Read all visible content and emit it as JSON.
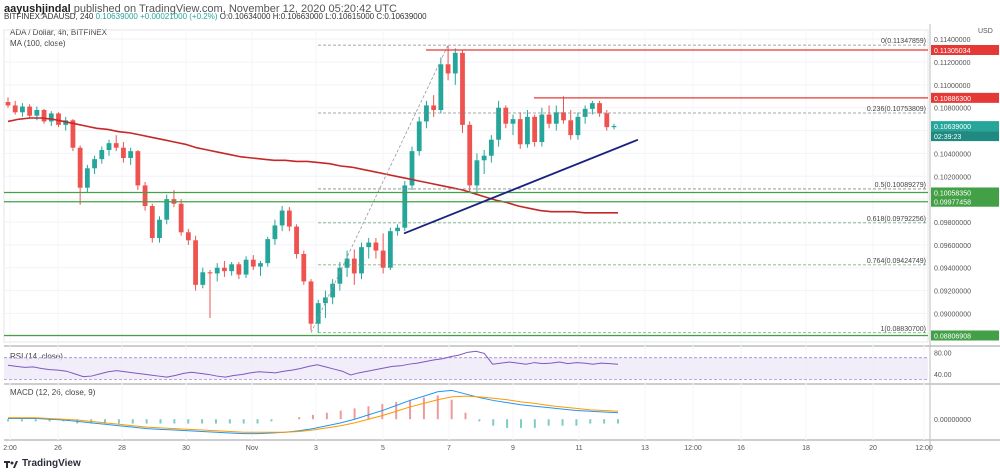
{
  "header": {
    "publisher": "aayushjindal",
    "published_text": "published on TradingView.com, November 12, 2020 05:20:42 UTC",
    "symbol_line": "BITFINEX:ADAUSD, 240",
    "ohlc": {
      "last": "0.10639000",
      "change": "+0.00021000 (+0.2%)",
      "open": "O:0.10634000",
      "high": "H:0.10663000",
      "low": "L:0.10615000",
      "close": "C:0.10639000"
    }
  },
  "legend": {
    "title": "ADA / Dollar, 4h, BITFINEX",
    "ma": "MA (100, close)",
    "rsi": "RSI (14, close)",
    "macd": "MACD (12, 26, close, 9)"
  },
  "currency": "USD",
  "footer": {
    "brand": "TradingView"
  },
  "colors": {
    "up": "#26a69a",
    "down": "#ef5350",
    "ma": "#c62828",
    "trend": "#1a237e",
    "resistance": "#e53935",
    "support": "#43a047",
    "fib": "#888888",
    "rsi": "#7e57c2",
    "macd": "#2196f3",
    "signal": "#ff9800"
  },
  "chart_data": [
    {
      "type": "candlestick",
      "title": "ADA / Dollar, 4h, BITFINEX",
      "x_tick_labels": [
        "2:00",
        "26",
        "28",
        "30",
        "Nov",
        "3",
        "5",
        "7",
        "9",
        "11",
        "13",
        "12:00",
        "16",
        "18",
        "20",
        "12:00"
      ],
      "y_tick_labels": [
        "0.08800000",
        "0.09000000",
        "0.09200000",
        "0.09400000",
        "0.09600000",
        "0.09800000",
        "0.10000000",
        "0.10200000",
        "0.10400000",
        "0.10600000",
        "0.10800000",
        "0.11000000",
        "0.11200000",
        "0.11400000"
      ],
      "ylim": [
        0.0875,
        0.1148
      ],
      "candles_ohlc": [
        [
          0.1085,
          0.1089,
          0.108,
          0.1082
        ],
        [
          0.1082,
          0.1086,
          0.1074,
          0.1076
        ],
        [
          0.1076,
          0.1084,
          0.1072,
          0.1081
        ],
        [
          0.1081,
          0.1083,
          0.1071,
          0.1073
        ],
        [
          0.1073,
          0.1081,
          0.1069,
          0.1078
        ],
        [
          0.1078,
          0.1079,
          0.1066,
          0.1068
        ],
        [
          0.1068,
          0.1077,
          0.1064,
          0.1075
        ],
        [
          0.1075,
          0.1076,
          0.1063,
          0.1065
        ],
        [
          0.1065,
          0.1072,
          0.106,
          0.1069
        ],
        [
          0.1069,
          0.107,
          0.1042,
          0.1045
        ],
        [
          0.1045,
          0.1047,
          0.0995,
          0.101
        ],
        [
          0.101,
          0.103,
          0.1006,
          0.1027
        ],
        [
          0.1027,
          0.1038,
          0.1022,
          0.1035
        ],
        [
          0.1035,
          0.1046,
          0.1031,
          0.1043
        ],
        [
          0.1043,
          0.1052,
          0.1038,
          0.1049
        ],
        [
          0.1049,
          0.1056,
          0.1042,
          0.1045
        ],
        [
          0.1045,
          0.105,
          0.1032,
          0.1036
        ],
        [
          0.1036,
          0.1045,
          0.103,
          0.1042
        ],
        [
          0.1042,
          0.1043,
          0.1008,
          0.1012
        ],
        [
          0.1012,
          0.1015,
          0.099,
          0.0994
        ],
        [
          0.0994,
          0.0996,
          0.0962,
          0.0966
        ],
        [
          0.0966,
          0.0985,
          0.0962,
          0.0982
        ],
        [
          0.0982,
          0.1004,
          0.0978,
          0.1
        ],
        [
          0.1,
          0.1008,
          0.0993,
          0.0996
        ],
        [
          0.0996,
          0.1,
          0.0968,
          0.0971
        ],
        [
          0.0971,
          0.0974,
          0.096,
          0.0964
        ],
        [
          0.0964,
          0.0968,
          0.092,
          0.0925
        ],
        [
          0.0925,
          0.094,
          0.0922,
          0.0936
        ],
        [
          0.0936,
          0.0938,
          0.0896,
          0.0935
        ],
        [
          0.0935,
          0.0944,
          0.0928,
          0.094
        ],
        [
          0.094,
          0.0946,
          0.0932,
          0.0937
        ],
        [
          0.0937,
          0.0945,
          0.0933,
          0.0943
        ],
        [
          0.0943,
          0.0945,
          0.093,
          0.0934
        ],
        [
          0.0934,
          0.095,
          0.0931,
          0.0947
        ],
        [
          0.0947,
          0.0951,
          0.0938,
          0.0941
        ],
        [
          0.0941,
          0.0946,
          0.0933,
          0.0944
        ],
        [
          0.0944,
          0.0967,
          0.0941,
          0.0965
        ],
        [
          0.0965,
          0.0982,
          0.096,
          0.0977
        ],
        [
          0.0977,
          0.0994,
          0.0972,
          0.099
        ],
        [
          0.099,
          0.0993,
          0.0972,
          0.0976
        ],
        [
          0.0976,
          0.0978,
          0.0948,
          0.0952
        ],
        [
          0.0952,
          0.0955,
          0.0925,
          0.0928
        ],
        [
          0.0928,
          0.093,
          0.0885,
          0.0891
        ],
        [
          0.0891,
          0.0912,
          0.0883,
          0.0909
        ],
        [
          0.0909,
          0.092,
          0.0896,
          0.0914
        ],
        [
          0.0914,
          0.093,
          0.0908,
          0.0926
        ],
        [
          0.0926,
          0.0945,
          0.092,
          0.094
        ],
        [
          0.094,
          0.0955,
          0.0932,
          0.0948
        ],
        [
          0.0948,
          0.0956,
          0.0925,
          0.0935
        ],
        [
          0.0935,
          0.0962,
          0.093,
          0.0958
        ],
        [
          0.0958,
          0.0966,
          0.0948,
          0.0962
        ],
        [
          0.0962,
          0.0966,
          0.0948,
          0.0955
        ],
        [
          0.0955,
          0.097,
          0.0935,
          0.094
        ],
        [
          0.094,
          0.0975,
          0.0938,
          0.0972
        ],
        [
          0.0972,
          0.0978,
          0.0968,
          0.0975
        ],
        [
          0.0975,
          0.1016,
          0.0972,
          0.1012
        ],
        [
          0.1012,
          0.1046,
          0.1008,
          0.1042
        ],
        [
          0.1042,
          0.1072,
          0.1038,
          0.1068
        ],
        [
          0.1068,
          0.1086,
          0.1062,
          0.1082
        ],
        [
          0.1082,
          0.1091,
          0.1072,
          0.1078
        ],
        [
          0.1078,
          0.1124,
          0.1075,
          0.1118
        ],
        [
          0.1118,
          0.1134,
          0.1104,
          0.111
        ],
        [
          0.111,
          0.1132,
          0.11,
          0.1128
        ],
        [
          0.1128,
          0.113,
          0.1058,
          0.1065
        ],
        [
          0.1065,
          0.1068,
          0.1006,
          0.1012
        ],
        [
          0.1012,
          0.104,
          0.1004,
          0.1034
        ],
        [
          0.1034,
          0.1043,
          0.1022,
          0.1038
        ],
        [
          0.1038,
          0.1056,
          0.1032,
          0.1052
        ],
        [
          0.1052,
          0.1086,
          0.1046,
          0.108
        ],
        [
          0.108,
          0.1082,
          0.1062,
          0.1066
        ],
        [
          0.1066,
          0.1074,
          0.1056,
          0.107
        ],
        [
          0.107,
          0.1076,
          0.1044,
          0.1048
        ],
        [
          0.1048,
          0.1078,
          0.1045,
          0.1072
        ],
        [
          0.1072,
          0.1074,
          0.1046,
          0.105
        ],
        [
          0.105,
          0.108,
          0.1046,
          0.1074
        ],
        [
          0.1074,
          0.1082,
          0.1062,
          0.1066
        ],
        [
          0.1066,
          0.1082,
          0.106,
          0.1076
        ],
        [
          0.1076,
          0.109,
          0.1066,
          0.1069
        ],
        [
          0.1069,
          0.1078,
          0.1052,
          0.1056
        ],
        [
          0.1056,
          0.1076,
          0.1052,
          0.1072
        ],
        [
          0.1072,
          0.1082,
          0.1066,
          0.1079
        ],
        [
          0.1079,
          0.1086,
          0.1074,
          0.1084
        ],
        [
          0.1084,
          0.1086,
          0.1072,
          0.1075
        ],
        [
          0.1075,
          0.1078,
          0.106,
          0.1063
        ],
        [
          0.1063,
          0.1066,
          0.1061,
          0.1064
        ]
      ],
      "ma_100": [
        0.1068,
        0.107,
        0.1071,
        0.1071,
        0.107,
        0.1068,
        0.1066,
        0.1064,
        0.1062,
        0.1061,
        0.1059,
        0.1058,
        0.1056,
        0.1054,
        0.1052,
        0.105,
        0.1048,
        0.1045,
        0.1043,
        0.1041,
        0.1039,
        0.1037,
        0.1036,
        0.1035,
        0.1034,
        0.1034,
        0.1033,
        0.1033,
        0.1032,
        0.1031,
        0.1029,
        0.1028,
        0.1026,
        0.1024,
        0.1022,
        0.102,
        0.1018,
        0.1016,
        0.1014,
        0.1012,
        0.101,
        0.1008,
        0.1005,
        0.1002,
        0.0999,
        0.0997,
        0.0994,
        0.0992,
        0.099,
        0.0989,
        0.0989,
        0.0989,
        0.0988,
        0.0988,
        0.0988,
        0.0988
      ],
      "horizontal_levels": [
        {
          "price": 0.11305034,
          "label": "0.11305034",
          "kind": "resistance"
        },
        {
          "price": 0.108863,
          "label": "0.10886300",
          "kind": "resistance"
        },
        {
          "price": 0.10639,
          "label": "0.10639000",
          "kind": "last"
        },
        {
          "price": 0.1005835,
          "label": "0.10058350",
          "kind": "support"
        },
        {
          "price": 0.09977458,
          "label": "0.09977458",
          "kind": "support"
        },
        {
          "price": 0.08806908,
          "label": "0.08806908",
          "kind": "support"
        }
      ],
      "fib_levels": [
        {
          "ratio": "0",
          "price": 0.11347859,
          "label": "0(0.11347859)"
        },
        {
          "ratio": "0.236",
          "price": 0.10753809,
          "label": "0.236(0.10753809)"
        },
        {
          "ratio": "0.5",
          "price": 0.10089279,
          "label": "0.5(0.10089279)"
        },
        {
          "ratio": "0.618",
          "price": 0.09792256,
          "label": "0.618(0.09792256)"
        },
        {
          "ratio": "0.764",
          "price": 0.09424749,
          "label": "0.764(0.09424749)"
        },
        {
          "ratio": "1",
          "price": 0.088307,
          "label": "1(0.08830700)"
        }
      ],
      "trend_line": {
        "from_price": 0.097,
        "to_price": 0.1052
      },
      "countdown": "02:39:23"
    },
    {
      "type": "line",
      "title": "RSI (14, close)",
      "y_tick_labels": [
        "80.00",
        "40.00"
      ],
      "ylim": [
        25,
        88
      ],
      "band": [
        30,
        70
      ],
      "values": [
        56,
        54,
        52,
        53,
        50,
        48,
        47,
        45,
        40,
        35,
        36,
        40,
        44,
        46,
        44,
        42,
        40,
        38,
        36,
        34,
        37,
        41,
        43,
        41,
        39,
        36,
        34,
        37,
        39,
        42,
        44,
        43,
        42,
        45,
        47,
        50,
        54,
        57,
        53,
        49,
        45,
        38,
        42,
        45,
        48,
        51,
        54,
        55,
        58,
        60,
        63,
        66,
        68,
        72,
        75,
        80,
        82,
        78,
        58,
        60,
        62,
        60,
        58,
        61,
        59,
        60,
        62,
        59,
        61,
        60,
        58,
        60,
        59,
        58
      ]
    },
    {
      "type": "line",
      "title": "MACD (12, 26, close, 9)",
      "y_tick_labels": [
        "0.00000000"
      ],
      "ylim": [
        -0.0026,
        0.0046
      ],
      "macd": [
        0.0001,
        0.0001,
        0.0001,
        0.0,
        -0.0001,
        -0.0003,
        -0.0005,
        -0.0007,
        -0.0009,
        -0.0011,
        -0.0013,
        -0.0014,
        -0.0015,
        -0.0016,
        -0.0017,
        -0.0018,
        -0.0019,
        -0.002,
        -0.002,
        -0.0019,
        -0.0018,
        -0.0016,
        -0.0013,
        -0.0009,
        -0.0005,
        0.0,
        0.0006,
        0.0012,
        0.0019,
        0.0026,
        0.0032,
        0.0038,
        0.004,
        0.0035,
        0.003,
        0.0026,
        0.0023,
        0.002,
        0.0018,
        0.0016,
        0.0014,
        0.0012,
        0.0011,
        0.001,
        0.0009
      ],
      "signal": [
        0.0002,
        0.0002,
        0.0002,
        0.0001,
        0.0,
        -0.0001,
        -0.0003,
        -0.0005,
        -0.0007,
        -0.0009,
        -0.0011,
        -0.0012,
        -0.0013,
        -0.0014,
        -0.0015,
        -0.0016,
        -0.0017,
        -0.0018,
        -0.0018,
        -0.0018,
        -0.0018,
        -0.0017,
        -0.0015,
        -0.0012,
        -0.0009,
        -0.0005,
        0.0,
        0.0005,
        0.0011,
        0.0017,
        0.0022,
        0.0027,
        0.0031,
        0.0032,
        0.0031,
        0.0029,
        0.0027,
        0.0024,
        0.0022,
        0.0019,
        0.0017,
        0.0015,
        0.0013,
        0.0012,
        0.0011
      ]
    }
  ]
}
